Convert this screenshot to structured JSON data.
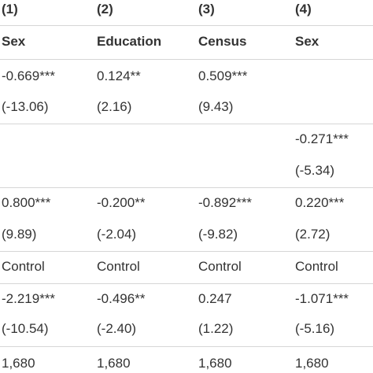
{
  "table": {
    "column_numbers": [
      "(1)",
      "(2)",
      "(3)",
      "(4)"
    ],
    "column_headers": [
      "Sex",
      "Education",
      "Census",
      "Sex"
    ],
    "rows": [
      [
        "-0.669***",
        "0.124**",
        "0.509***",
        null
      ],
      [
        "(-13.06)",
        "(2.16)",
        "(9.43)",
        null
      ],
      [
        null,
        null,
        null,
        "-0.271***"
      ],
      [
        null,
        null,
        null,
        "(-5.34)"
      ],
      [
        "0.800***",
        "-0.200**",
        "-0.892***",
        "0.220***"
      ],
      [
        "(9.89)",
        "(-2.04)",
        "(-9.82)",
        "(2.72)"
      ],
      [
        "Control",
        "Control",
        "Control",
        "Control"
      ],
      [
        "-2.219***",
        "-0.496**",
        "0.247",
        "-1.071***"
      ],
      [
        "(-10.54)",
        "(-2.40)",
        "(1.22)",
        "(-5.16)"
      ],
      [
        "1,680",
        "1,680",
        "1,680",
        "1,680"
      ]
    ]
  }
}
